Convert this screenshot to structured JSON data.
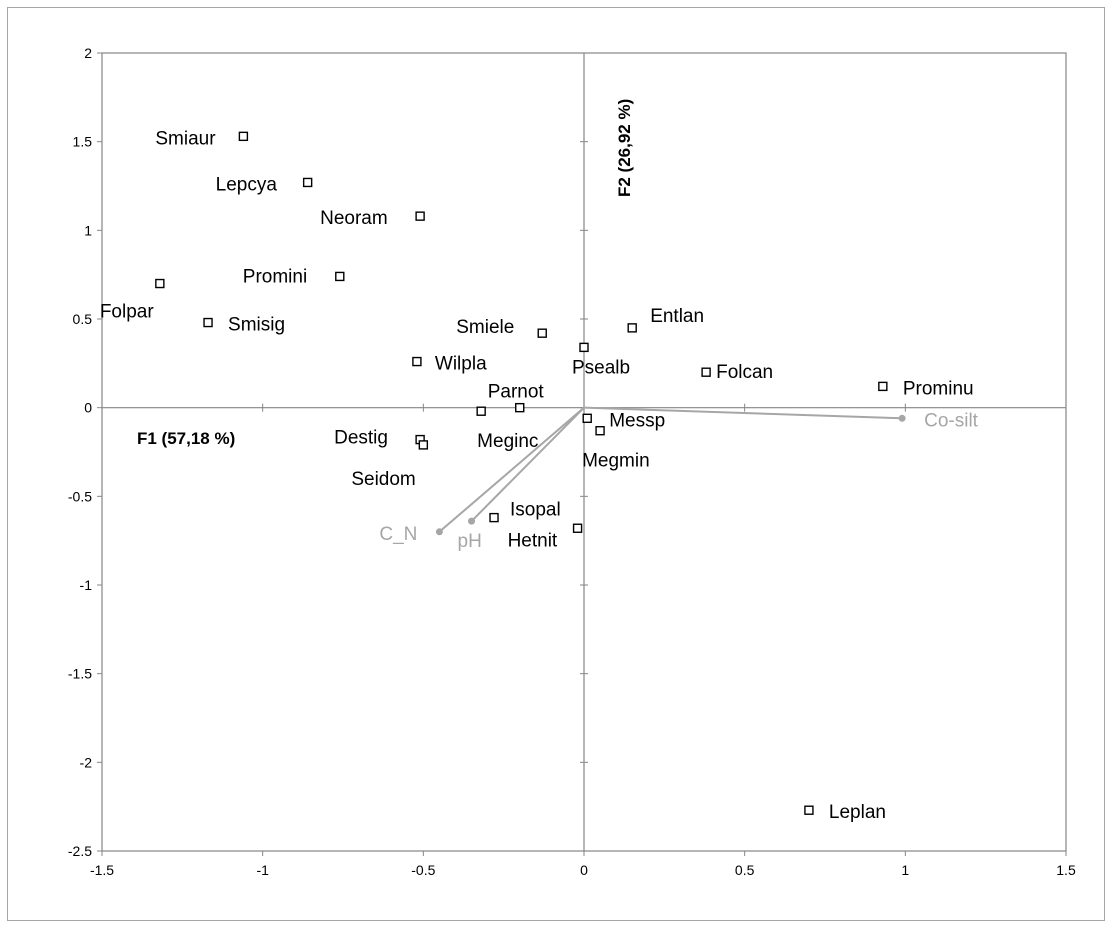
{
  "chart_data": {
    "type": "scatter",
    "title": "",
    "xlabel": "F1 (57,18 %)",
    "ylabel": "F2 (26,92 %)",
    "xlim": [
      -1.5,
      1.5
    ],
    "ylim": [
      -2.5,
      2
    ],
    "x_ticks": [
      "-1.5",
      "-1",
      "-0.5",
      "0",
      "0.5",
      "1",
      "1.5"
    ],
    "y_ticks": [
      "2",
      "1.5",
      "1",
      "0.5",
      "0",
      "-0.5",
      "-1",
      "-1.5",
      "-2",
      "-2.5"
    ],
    "marker_color": "#000000",
    "vector_color": "#a6a6a6",
    "legend": "none",
    "points": [
      {
        "label": "Smiaur",
        "x": -1.06,
        "y": 1.53
      },
      {
        "label": "Lepcya",
        "x": -0.86,
        "y": 1.27
      },
      {
        "label": "Neoram",
        "x": -0.51,
        "y": 1.08
      },
      {
        "label": "Promini",
        "x": -0.76,
        "y": 0.74
      },
      {
        "label": "Folpar",
        "x": -1.32,
        "y": 0.7
      },
      {
        "label": "Smisig",
        "x": -1.17,
        "y": 0.48
      },
      {
        "label": "Smiele",
        "x": -0.13,
        "y": 0.42
      },
      {
        "label": "Entlan",
        "x": 0.15,
        "y": 0.45
      },
      {
        "label": "Psealb",
        "x": 0.0,
        "y": 0.34
      },
      {
        "label": "Wilpla",
        "x": -0.52,
        "y": 0.26
      },
      {
        "label": "Folcan",
        "x": 0.38,
        "y": 0.2
      },
      {
        "label": "Prominu",
        "x": 0.93,
        "y": 0.12
      },
      {
        "label": "Parnot",
        "x": -0.2,
        "y": 0.0
      },
      {
        "label": "Meginc",
        "x": -0.32,
        "y": -0.02
      },
      {
        "label": "Messp",
        "x": 0.01,
        "y": -0.06
      },
      {
        "label": "Megmin",
        "x": 0.05,
        "y": -0.13
      },
      {
        "label": "Destig",
        "x": -0.51,
        "y": -0.18
      },
      {
        "label": "Seidom",
        "x": -0.5,
        "y": -0.21
      },
      {
        "label": "Isopal",
        "x": -0.28,
        "y": -0.62
      },
      {
        "label": "Hetnit",
        "x": -0.02,
        "y": -0.68
      },
      {
        "label": "Leplan",
        "x": 0.7,
        "y": -2.27
      }
    ],
    "vectors": [
      {
        "label": "C_N",
        "x": -0.45,
        "y": -0.7
      },
      {
        "label": "pH",
        "x": -0.35,
        "y": -0.64
      },
      {
        "label": "Co-silt",
        "x": 0.99,
        "y": -0.06
      }
    ]
  }
}
